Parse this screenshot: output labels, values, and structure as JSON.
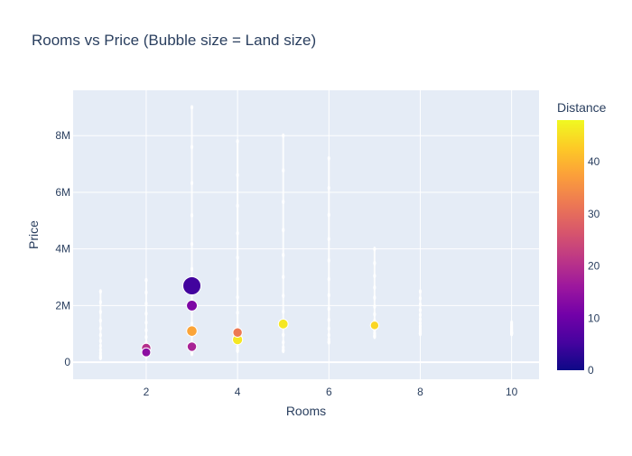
{
  "chart_data": {
    "type": "scatter",
    "title": "Rooms vs Price (Bubble size = Land size)",
    "xlabel": "Rooms",
    "ylabel": "Price",
    "xlim": [
      0.4,
      10.6
    ],
    "ylim": [
      -600000,
      9600000
    ],
    "x_ticks": [
      {
        "value": 2,
        "label": "2"
      },
      {
        "value": 4,
        "label": "4"
      },
      {
        "value": 6,
        "label": "6"
      },
      {
        "value": 8,
        "label": "8"
      },
      {
        "value": 10,
        "label": "10"
      }
    ],
    "y_ticks": [
      {
        "value": 0,
        "label": "0"
      },
      {
        "value": 2000000,
        "label": "2M"
      },
      {
        "value": 4000000,
        "label": "4M"
      },
      {
        "value": 6000000,
        "label": "6M"
      },
      {
        "value": 8000000,
        "label": "8M"
      }
    ],
    "colorbar": {
      "title": "Distance",
      "range": [
        0,
        48
      ],
      "ticks": [
        {
          "value": 0,
          "label": "0"
        },
        {
          "value": 10,
          "label": "10"
        },
        {
          "value": 20,
          "label": "20"
        },
        {
          "value": 30,
          "label": "30"
        },
        {
          "value": 40,
          "label": "40"
        }
      ]
    },
    "colors": {
      "plot_bg": "#E5ECF6",
      "grid": "#ffffff",
      "text": "#2a3f5f"
    },
    "points": [
      {
        "rooms": 3,
        "price": 2700000,
        "distance": 5,
        "land_size": 100
      },
      {
        "rooms": 3,
        "price": 2000000,
        "distance": 12,
        "land_size": 18
      },
      {
        "rooms": 3,
        "price": 1100000,
        "distance": 38,
        "land_size": 16
      },
      {
        "rooms": 3,
        "price": 550000,
        "distance": 18,
        "land_size": 10
      },
      {
        "rooms": 4,
        "price": 1050000,
        "distance": 32,
        "land_size": 10
      },
      {
        "rooms": 4,
        "price": 800000,
        "distance": 46,
        "land_size": 14
      },
      {
        "rooms": 5,
        "price": 1350000,
        "distance": 46,
        "land_size": 12
      },
      {
        "rooms": 2,
        "price": 500000,
        "distance": 20,
        "land_size": 10
      },
      {
        "rooms": 2,
        "price": 350000,
        "distance": 14,
        "land_size": 8
      },
      {
        "rooms": 7,
        "price": 1300000,
        "distance": 44,
        "land_size": 6
      }
    ],
    "strips": [
      {
        "rooms": 1,
        "price_min": 150000,
        "price_max": 2500000
      },
      {
        "rooms": 2,
        "price_min": 200000,
        "price_max": 2900000
      },
      {
        "rooms": 3,
        "price_min": 300000,
        "price_max": 9000000
      },
      {
        "rooms": 4,
        "price_min": 400000,
        "price_max": 7800000
      },
      {
        "rooms": 5,
        "price_min": 400000,
        "price_max": 8000000
      },
      {
        "rooms": 6,
        "price_min": 700000,
        "price_max": 7200000
      },
      {
        "rooms": 7,
        "price_min": 900000,
        "price_max": 4000000
      },
      {
        "rooms": 8,
        "price_min": 1000000,
        "price_max": 2500000
      },
      {
        "rooms": 10,
        "price_min": 1000000,
        "price_max": 1400000
      }
    ]
  }
}
